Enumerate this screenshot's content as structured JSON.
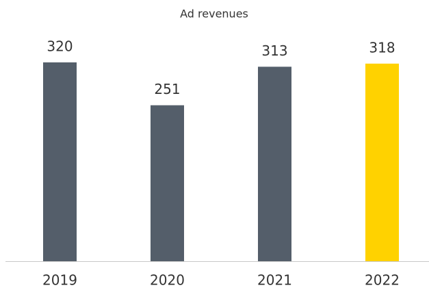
{
  "chart_data": {
    "type": "bar",
    "title": "Ad revenues",
    "categories": [
      "2019",
      "2020",
      "2021",
      "2022"
    ],
    "values": [
      320,
      251,
      313,
      318
    ],
    "colors": [
      "#545e6a",
      "#545e6a",
      "#545e6a",
      "#ffd200"
    ]
  }
}
